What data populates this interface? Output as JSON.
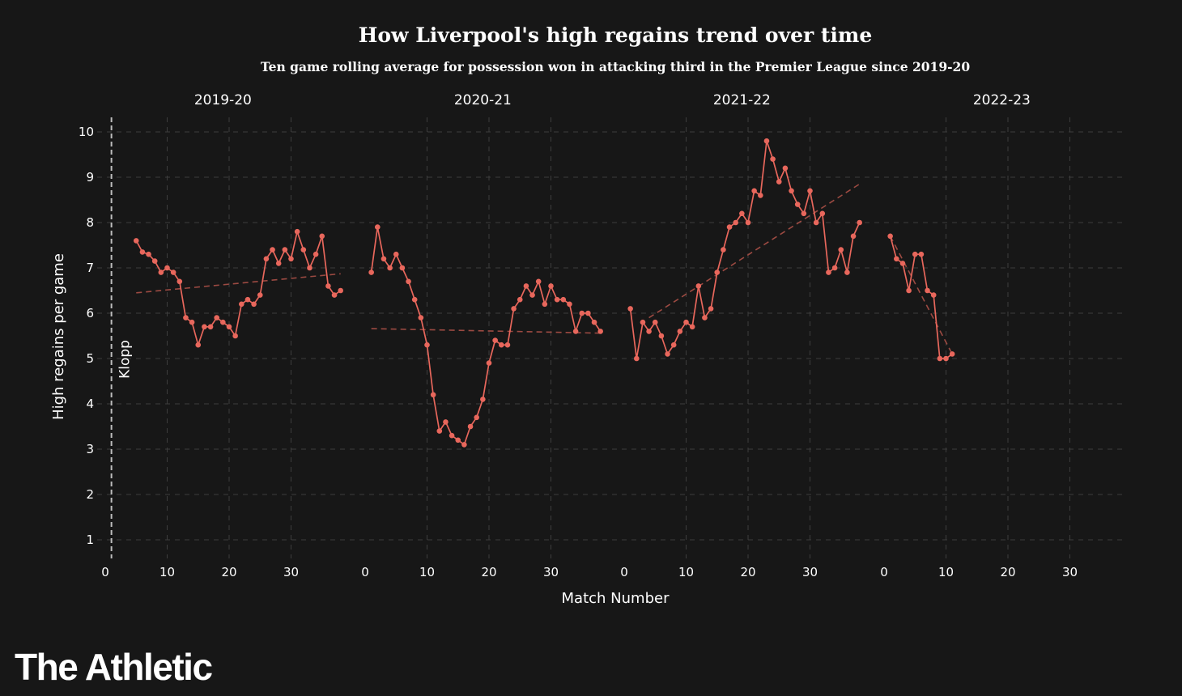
{
  "title": "How Liverpool's high regains trend over time",
  "subtitle": "Ten game rolling average for possession won in attacking third in the Premier League since 2019-20",
  "brand": "The Athletic",
  "colors": {
    "background": "#171717",
    "series": "#e8675c",
    "trend": "#9c4a42",
    "grid": "#3d3d3d"
  },
  "chart_data": {
    "type": "line",
    "xlabel": "Match Number",
    "ylabel": "High regains per game",
    "ylim": [
      1,
      10
    ],
    "yticks": [
      "1",
      "2",
      "3",
      "4",
      "5",
      "6",
      "7",
      "8",
      "9",
      "10"
    ],
    "xlim": [
      0,
      38
    ],
    "xticks": [
      "0",
      "10",
      "20",
      "30"
    ],
    "grid": true,
    "annotation": {
      "text": "Klopp",
      "x": 1,
      "panel": 0
    },
    "panels": [
      {
        "season": "2019-20",
        "series": {
          "x": [
            5,
            6,
            7,
            8,
            9,
            10,
            11,
            12,
            13,
            14,
            15,
            16,
            17,
            18,
            19,
            20,
            21,
            22,
            23,
            24,
            25,
            26,
            27,
            28,
            29,
            30,
            31,
            32,
            33,
            34,
            35,
            36,
            37,
            38
          ],
          "y": [
            7.6,
            7.35,
            7.3,
            7.15,
            6.9,
            7.0,
            6.9,
            6.7,
            5.9,
            5.8,
            5.3,
            5.7,
            5.7,
            5.9,
            5.8,
            5.7,
            5.5,
            6.2,
            6.3,
            6.2,
            6.4,
            7.2,
            7.4,
            7.1,
            7.4,
            7.2,
            7.8,
            7.4,
            7.0,
            7.3,
            7.7,
            6.6,
            6.4,
            6.5
          ]
        },
        "trend": {
          "x": [
            5,
            38
          ],
          "y": [
            6.45,
            6.87
          ]
        }
      },
      {
        "season": "2020-21",
        "series": {
          "x": [
            1,
            2,
            3,
            4,
            5,
            6,
            7,
            8,
            9,
            10,
            11,
            12,
            13,
            14,
            15,
            16,
            17,
            18,
            19,
            20,
            21,
            22,
            23,
            24,
            25,
            26,
            27,
            28,
            29,
            30,
            31,
            32,
            33,
            34,
            35,
            36,
            37,
            38
          ],
          "y": [
            6.9,
            7.9,
            7.2,
            7.0,
            7.3,
            7.0,
            6.7,
            6.3,
            5.9,
            5.3,
            4.2,
            3.4,
            3.6,
            3.3,
            3.2,
            3.1,
            3.5,
            3.7,
            4.1,
            4.9,
            5.4,
            5.3,
            5.3,
            6.1,
            6.3,
            6.6,
            6.4,
            6.7,
            6.2,
            6.6,
            6.3,
            6.3,
            6.2,
            5.6,
            6.0,
            6.0,
            5.8,
            5.6
          ]
        },
        "trend": {
          "x": [
            1,
            38
          ],
          "y": [
            5.66,
            5.56
          ]
        }
      },
      {
        "season": "2021-22",
        "series": {
          "x": [
            1,
            2,
            3,
            4,
            5,
            6,
            7,
            8,
            9,
            10,
            11,
            12,
            13,
            14,
            15,
            16,
            17,
            18,
            19,
            20,
            21,
            22,
            23,
            24,
            25,
            26,
            27,
            28,
            29,
            30,
            31,
            32,
            33,
            34,
            35,
            36,
            37,
            38
          ],
          "y": [
            6.1,
            5.0,
            5.8,
            5.6,
            5.8,
            5.5,
            5.1,
            5.3,
            5.6,
            5.8,
            5.7,
            6.6,
            5.9,
            6.1,
            6.9,
            7.4,
            7.9,
            8.0,
            8.2,
            8.0,
            8.7,
            8.6,
            9.8,
            9.4,
            8.9,
            9.2,
            8.7,
            8.4,
            8.2,
            8.7,
            8.0,
            8.2,
            6.9,
            7.0,
            7.4,
            6.9,
            7.7,
            8.0
          ]
        },
        "trend": {
          "x": [
            4,
            38
          ],
          "y": [
            5.9,
            8.85
          ]
        }
      },
      {
        "season": "2022-23",
        "series": {
          "x": [
            1,
            2,
            3,
            4,
            5,
            6,
            7,
            8,
            9,
            10,
            11
          ],
          "y": [
            7.7,
            7.2,
            7.1,
            6.5,
            7.3,
            7.3,
            6.5,
            6.4,
            5.0,
            5.0,
            5.1
          ]
        },
        "trend": {
          "x": [
            1,
            11
          ],
          "y": [
            7.7,
            5.1
          ]
        }
      }
    ]
  }
}
